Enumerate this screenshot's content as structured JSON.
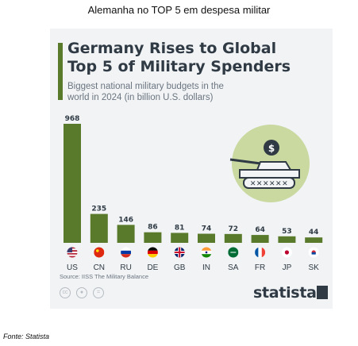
{
  "caption": "Alemanha no TOP 5 em despesa militar",
  "footer": "Fonte: Statista",
  "card": {
    "title_line1": "Germany Rises to Global",
    "title_line2": "Top 5 of Military Spenders",
    "subtitle_line1": "Biggest national military budgets in the",
    "subtitle_line2": "world in 2024 (in billion U.S. dollars)",
    "source": "Source: IISS The Military Balance",
    "logo": "statista"
  },
  "colors": {
    "bar": "#5a7a2b",
    "card": "#f1f3f5",
    "text": "#2f3a44",
    "accent_light": "#c9d9a0"
  },
  "icons": [
    "us-flag-icon",
    "cn-flag-icon",
    "ru-flag-icon",
    "de-flag-icon",
    "gb-flag-icon",
    "in-flag-icon",
    "sa-flag-icon",
    "fr-flag-icon",
    "jp-flag-icon",
    "kr-flag-icon",
    "tank-icon",
    "dollar-icon",
    "cc-icon",
    "person-icon",
    "equal-icon"
  ],
  "chart_data": {
    "type": "bar",
    "categories": [
      "US",
      "CN",
      "RU",
      "DE",
      "GB",
      "IN",
      "SA",
      "FR",
      "JP",
      "SK"
    ],
    "values": [
      968,
      235,
      146,
      86,
      81,
      74,
      72,
      64,
      53,
      44
    ],
    "title": "Germany Rises to Global Top 5 of Military Spenders",
    "subtitle": "Biggest national military budgets in the world in 2024 (in billion U.S. dollars)",
    "ylim": [
      0,
      968
    ],
    "grid": false,
    "legend": "none"
  }
}
